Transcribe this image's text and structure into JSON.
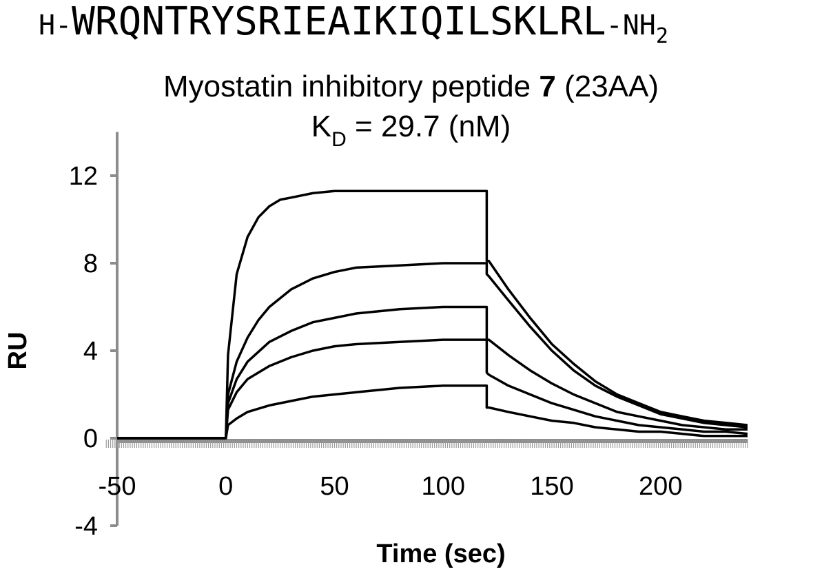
{
  "header": {
    "seq_prefix": "H-",
    "sequence": "WRQNTRYSRIEAIKIQILSKLRL",
    "seq_suffix": "-NH",
    "seq_suffix_sub": "2",
    "subtitle_pre": "Myostatin inhibitory peptide ",
    "subtitle_bold": "7",
    "subtitle_post": " (23AA)",
    "kd_pre": "K",
    "kd_sub": "D",
    "kd_post": " = 29.7 (nM)"
  },
  "chart_data": {
    "type": "line",
    "xlabel": "Time (sec)",
    "ylabel": "RU",
    "xlim": [
      -55,
      240
    ],
    "ylim": [
      -4,
      14
    ],
    "x_ticks": [
      -50,
      0,
      50,
      100,
      150,
      200
    ],
    "y_ticks": [
      -4,
      0,
      4,
      8,
      12
    ],
    "injection_start": 0,
    "injection_end": 120,
    "series": [
      {
        "values": {
          "x": [
            -50,
            0,
            1,
            5,
            10,
            15,
            20,
            25,
            30,
            40,
            50,
            60,
            80,
            100,
            120,
            120,
            121,
            130,
            140,
            150,
            160,
            170,
            180,
            190,
            200,
            210,
            220,
            230,
            240
          ],
          "y": [
            0,
            0,
            3.8,
            7.5,
            9.2,
            10.1,
            10.6,
            10.9,
            11.0,
            11.2,
            11.3,
            11.3,
            11.3,
            11.3,
            11.3,
            8.1,
            8.1,
            6.8,
            5.5,
            4.3,
            3.4,
            2.6,
            2.0,
            1.6,
            1.2,
            1.0,
            0.8,
            0.7,
            0.6
          ]
        }
      },
      {
        "values": {
          "x": [
            -50,
            0,
            1,
            5,
            10,
            15,
            20,
            30,
            40,
            50,
            60,
            80,
            100,
            120,
            120,
            121,
            130,
            140,
            150,
            160,
            170,
            180,
            190,
            200,
            210,
            220,
            230,
            240
          ],
          "y": [
            0,
            0,
            2.0,
            3.5,
            4.6,
            5.4,
            6.0,
            6.8,
            7.3,
            7.6,
            7.8,
            7.9,
            8.0,
            8.0,
            7.5,
            7.4,
            6.3,
            5.1,
            4.0,
            3.1,
            2.4,
            1.9,
            1.5,
            1.1,
            0.9,
            0.7,
            0.6,
            0.5
          ]
        }
      },
      {
        "values": {
          "x": [
            -50,
            0,
            1,
            5,
            10,
            20,
            30,
            40,
            50,
            60,
            80,
            100,
            120,
            120,
            121,
            130,
            140,
            150,
            160,
            170,
            180,
            190,
            200,
            210,
            220,
            230,
            240
          ],
          "y": [
            0,
            0,
            1.6,
            2.7,
            3.5,
            4.4,
            4.9,
            5.3,
            5.5,
            5.7,
            5.9,
            6.0,
            6.0,
            4.5,
            4.5,
            3.8,
            3.1,
            2.5,
            2.0,
            1.6,
            1.2,
            1.0,
            0.8,
            0.6,
            0.5,
            0.4,
            0.4
          ]
        }
      },
      {
        "values": {
          "x": [
            -50,
            0,
            1,
            5,
            10,
            20,
            30,
            40,
            50,
            60,
            80,
            100,
            120,
            120,
            121,
            130,
            140,
            150,
            160,
            170,
            180,
            190,
            200,
            210,
            220,
            230,
            240
          ],
          "y": [
            0,
            0,
            1.3,
            2.1,
            2.7,
            3.3,
            3.7,
            4.0,
            4.2,
            4.3,
            4.4,
            4.5,
            4.5,
            3.0,
            2.9,
            2.4,
            2.0,
            1.6,
            1.3,
            1.0,
            0.8,
            0.6,
            0.5,
            0.4,
            0.3,
            0.3,
            0.2
          ]
        }
      },
      {
        "values": {
          "x": [
            -50,
            0,
            1,
            5,
            10,
            20,
            30,
            40,
            50,
            60,
            80,
            100,
            120,
            120,
            121,
            130,
            140,
            150,
            160,
            170,
            180,
            190,
            200,
            210,
            220,
            230,
            240
          ],
          "y": [
            0,
            0,
            0.6,
            0.9,
            1.2,
            1.5,
            1.7,
            1.9,
            2.0,
            2.1,
            2.3,
            2.4,
            2.4,
            1.4,
            1.4,
            1.2,
            1.0,
            0.8,
            0.7,
            0.5,
            0.4,
            0.3,
            0.3,
            0.2,
            0.1,
            0.1,
            0.1
          ]
        }
      }
    ]
  }
}
